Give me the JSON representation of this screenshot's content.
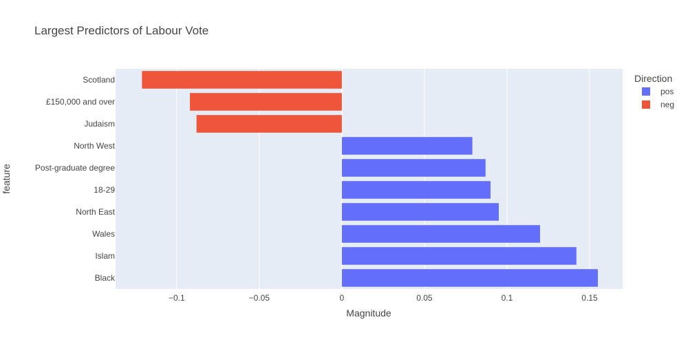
{
  "chart_data": {
    "type": "bar",
    "orientation": "horizontal",
    "title": "Largest Predictors of Labour Vote",
    "xlabel": "Magnitude",
    "ylabel": "feature",
    "xlim": [
      -0.137,
      0.17
    ],
    "xticks": [
      -0.1,
      -0.05,
      0,
      0.05,
      0.1,
      0.15
    ],
    "xtick_labels": [
      "−0.1",
      "−0.05",
      "0",
      "0.05",
      "0.1",
      "0.15"
    ],
    "grid": true,
    "legend": {
      "title": "Direction",
      "placement": "top-right",
      "entries": [
        {
          "name": "pos",
          "color": "#636efa"
        },
        {
          "name": "neg",
          "color": "#ef553b"
        }
      ]
    },
    "categories": [
      "Scotland",
      "£150,000 and over",
      "Judaism",
      "North West",
      "Post-graduate degree",
      "18-29",
      "North East",
      "Wales",
      "Islam",
      "Black"
    ],
    "values": [
      -0.121,
      -0.092,
      -0.088,
      0.079,
      0.087,
      0.09,
      0.095,
      0.12,
      0.142,
      0.155
    ],
    "directions": [
      "neg",
      "neg",
      "neg",
      "pos",
      "pos",
      "pos",
      "pos",
      "pos",
      "pos",
      "pos"
    ],
    "colors": {
      "pos": "#636efa",
      "neg": "#ef553b"
    },
    "plot_background": "#e5ecf6"
  }
}
